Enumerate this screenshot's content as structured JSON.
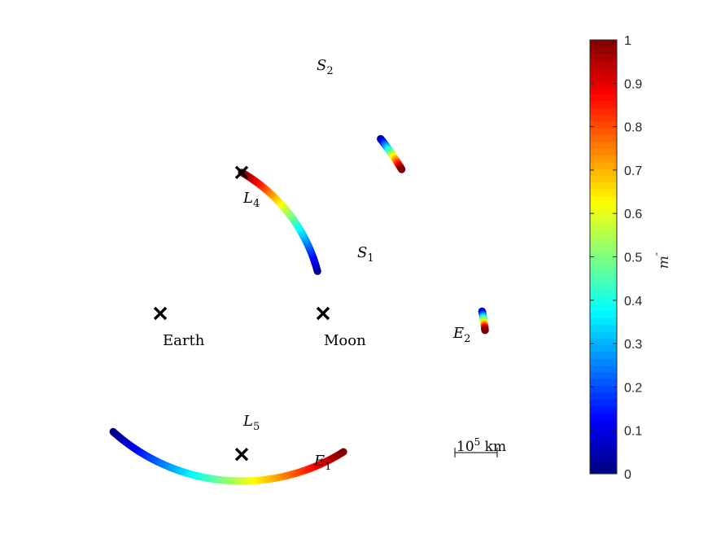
{
  "chart_data": {
    "type": "scatter",
    "title": "",
    "axes_visible": false,
    "points": [
      {
        "name": "Earth",
        "label": "Earth",
        "x": -1.0,
        "y": 0.0,
        "marker": "x"
      },
      {
        "name": "Moon",
        "label": "Moon",
        "x": 0.0,
        "y": 0.0,
        "marker": "x"
      },
      {
        "name": "L4",
        "label_base": "L",
        "label_sub": "4",
        "x": -0.5,
        "y": 0.866,
        "marker": "x"
      },
      {
        "name": "L5",
        "label_base": "L",
        "label_sub": "5",
        "x": -0.5,
        "y": -0.866,
        "marker": "x"
      }
    ],
    "trajectories": [
      {
        "name": "S1",
        "label_base": "S",
        "label_sub": "1",
        "start_angle_deg": 60,
        "end_angle_deg": 11,
        "radius": 1.0,
        "color_start": 0,
        "color_end": 1
      },
      {
        "name": "S2",
        "label_base": "S",
        "label_sub": "2",
        "start_angle_deg": 98,
        "end_angle_deg": 84,
        "radius": 1.727,
        "color_start": 0,
        "color_end": 1
      },
      {
        "name": "E1",
        "label_base": "E",
        "label_sub": "1",
        "start_angle_deg": -60,
        "end_angle_deg": 0,
        "radius": 1.0,
        "pivot": "L5-arc",
        "color_start": 0,
        "color_end": 1
      },
      {
        "name": "E2",
        "label_base": "E",
        "label_sub": "2",
        "start_angle_deg": 4,
        "end_angle_deg": -18,
        "radius": 1.0,
        "color_start": 0,
        "color_end": 1
      }
    ],
    "scale_bar": {
      "label_base": "10",
      "label_sup": "5",
      "label_unit": " km",
      "length_km": 100000
    },
    "colorbar": {
      "label": "m″",
      "label_base": "m",
      "label_prime": "″",
      "colormap": "jet",
      "clim": [
        0,
        1
      ],
      "ticks": [
        0,
        0.1,
        0.2,
        0.3,
        0.4,
        0.5,
        0.6,
        0.7,
        0.8,
        0.9,
        1
      ],
      "tick_labels": [
        "0",
        "0.1",
        "0.2",
        "0.3",
        "0.4",
        "0.5",
        "0.6",
        "0.7",
        "0.8",
        "0.9",
        "1"
      ]
    }
  }
}
